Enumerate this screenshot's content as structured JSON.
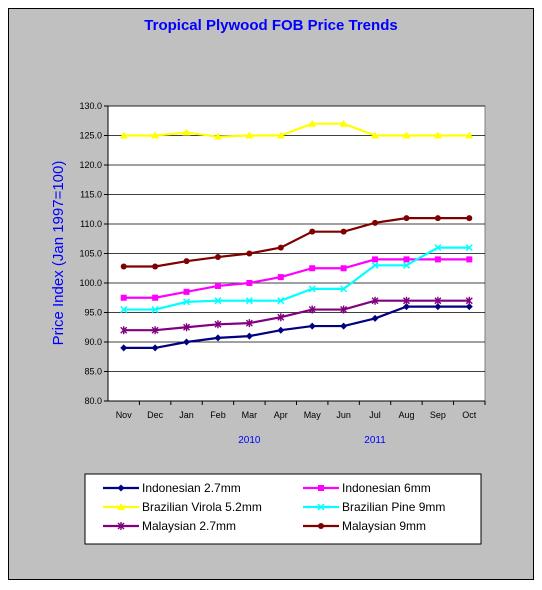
{
  "chart_data": {
    "type": "line",
    "title": "Tropical Plywood FOB Price Trends",
    "ylabel": "Price Index (Jan 1997=100)",
    "ylim": [
      80,
      130
    ],
    "yticks": [
      "80.0",
      "85.0",
      "90.0",
      "95.0",
      "100.0",
      "105.0",
      "110.0",
      "115.0",
      "120.0",
      "125.0",
      "130.0"
    ],
    "categories": [
      "Nov",
      "Dec",
      "Jan",
      "Feb",
      "Mar",
      "Apr",
      "May",
      "Jun",
      "Jul",
      "Aug",
      "Sep",
      "Oct"
    ],
    "year_labels": [
      {
        "label": "2010",
        "at": "Mar"
      },
      {
        "label": "2011",
        "at": "Jul"
      }
    ],
    "grid": "horizontal",
    "legend": "bottom",
    "series": [
      {
        "name": "Indonesian 2.7mm",
        "color": "#000080",
        "marker": "diamond",
        "values": [
          89,
          89,
          90,
          90.7,
          91,
          92,
          92.7,
          92.7,
          94,
          96,
          96,
          96
        ]
      },
      {
        "name": "Indonesian 6mm",
        "color": "#ff00ff",
        "marker": "square",
        "values": [
          97.5,
          97.5,
          98.5,
          99.5,
          100,
          101,
          102.5,
          102.5,
          104,
          104,
          104,
          104
        ]
      },
      {
        "name": "Brazilian Virola 5.2mm",
        "color": "#ffff00",
        "marker": "triangle",
        "values": [
          125,
          125,
          125.5,
          124.8,
          125,
          125,
          127,
          127,
          125,
          125,
          125,
          125
        ]
      },
      {
        "name": "Brazilian Pine 9mm",
        "color": "#00ffff",
        "marker": "x",
        "values": [
          95.5,
          95.5,
          96.8,
          97,
          97,
          97,
          99,
          99,
          103,
          103,
          106,
          106
        ]
      },
      {
        "name": "Malaysian 2.7mm",
        "color": "#800080",
        "marker": "asterisk",
        "values": [
          92,
          92,
          92.5,
          93,
          93.2,
          94.2,
          95.5,
          95.5,
          97,
          97,
          97,
          97
        ]
      },
      {
        "name": "Malaysian 9mm",
        "color": "#800000",
        "marker": "circle",
        "values": [
          102.8,
          102.8,
          103.7,
          104.4,
          105,
          106,
          108.7,
          108.7,
          110.2,
          111,
          111,
          111
        ]
      }
    ]
  }
}
